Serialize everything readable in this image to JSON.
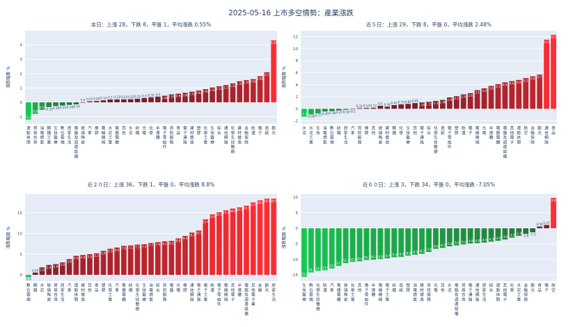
{
  "title": "2025-05-16 上市多空情勢：產業漲跌",
  "chart_data": [
    {
      "type": "bar",
      "title": "本日：上漲 28，下跌 8，平盤 1，平均漲跌 0.55%",
      "ylabel": "漲跌幅度 %",
      "ylim": [
        -1.5,
        5
      ],
      "yticks": [
        -1,
        0,
        1,
        2,
        3,
        4
      ],
      "categories": [
        "運動休閒",
        "貿易百貨",
        "油電燃氣",
        "鋼鐵工業",
        "生技醫療",
        "數位雲端",
        "居家生活",
        "電腦及週邊設備",
        "玻璃陶瓷",
        "汽車",
        "橡膠",
        "電機機械",
        "水泥工業",
        "電器電纜",
        "其他",
        "水泥",
        "紡織",
        "光電",
        "化學工業",
        "半導體",
        "電子零組件",
        "資訊服務",
        "食品",
        "電子通路",
        "建材營造",
        "塑膠",
        "化學生技",
        "其他電子",
        "綜合",
        "通信網路",
        "化學生技醫療",
        "金融保險",
        "航運",
        "電子",
        "造紙",
        "其他電子2",
        "觀光"
      ],
      "display_categories": [
        "運動休閒",
        "貿易百貨",
        "油電燃氣",
        "鋼鐵工業",
        "生技醫療",
        "數位雲端",
        "居家生活",
        "電腦及週邊設備",
        "玻璃陶瓷",
        "汽車",
        "橡膠",
        "電機機械",
        "水泥工業",
        "電器電纜",
        "其他",
        "水泥",
        "紡織",
        "光電",
        "化學",
        "半導體",
        "電子零組件",
        "資訊服務",
        "食品",
        "電子通路",
        "建材營造",
        "塑膠",
        "化學工業",
        "生技醫療",
        "綜合",
        "通信網路",
        "化學生技醫療",
        "建材營造",
        "金融保險",
        "航運",
        "電子",
        "造紙",
        "觀光"
      ],
      "values": [
        -1.2,
        -0.8,
        -0.52,
        -0.33,
        -0.26,
        -0.22,
        -0.18,
        -0.14,
        0.0,
        0.07,
        0.09,
        0.14,
        0.2,
        0.21,
        0.21,
        0.22,
        0.25,
        0.3,
        0.35,
        0.4,
        0.46,
        0.55,
        0.6,
        0.66,
        0.74,
        0.82,
        0.92,
        1.03,
        1.12,
        1.2,
        1.32,
        1.47,
        1.55,
        1.62,
        1.82,
        2.1,
        4.32
      ],
      "labels": [
        "-1.2",
        "-0.8",
        "-0.52",
        "-0.33",
        "-0.26",
        "-0.22",
        "-0.18",
        "-0.14",
        "0.0",
        "0.07",
        "0.09",
        "0.14",
        "0.2",
        "0.21",
        "0.21",
        "0.22",
        "0.25",
        "0.3",
        "0.35",
        "0.4",
        "0.46",
        "0.55",
        "0.6",
        "0.66",
        "0.74",
        "0.82",
        "0.92",
        "1.03",
        "1.12",
        "1.2",
        "1.32",
        "1.47",
        "1.55",
        "1.62",
        "1.82",
        "2.1",
        "4.32"
      ]
    },
    {
      "type": "bar",
      "title": "近５日：上漲 29，下跌 8，平盤 0，平均漲跌 2.48%",
      "ylabel": "漲跌幅度 %",
      "ylim": [
        -2.5,
        13
      ],
      "yticks": [
        -2,
        0,
        2,
        4,
        6,
        8,
        10,
        12
      ],
      "display_categories": [
        "水泥",
        "水泥工業",
        "生技",
        "油電燃氣",
        "數位雲端",
        "紡織",
        "居家生活",
        "汽車",
        "資訊服務",
        "橡膠",
        "其他",
        "玻璃陶瓷",
        "建材營造",
        "鋼鐵",
        "化學",
        "生技醫療",
        "其他",
        "電子通路",
        "綜合",
        "化學生技醫療",
        "造紙",
        "電子零組件",
        "塑膠",
        "航運",
        "電子",
        "電機機械",
        "光電",
        "半導體",
        "電器電纜",
        "電腦及週邊設備",
        "其他電子",
        "運動休閒",
        "航空",
        "金融保險",
        "觀光",
        "通信網路",
        "食品"
      ],
      "values": [
        -1.3,
        -0.95,
        -0.77,
        -0.45,
        -0.38,
        -0.27,
        -0.16,
        -0.1,
        0.11,
        0.14,
        0.17,
        0.5,
        0.36,
        0.62,
        0.75,
        0.82,
        0.95,
        1.05,
        1.15,
        1.3,
        1.48,
        1.9,
        2.1,
        2.4,
        2.6,
        3.1,
        3.4,
        3.8,
        4.1,
        4.4,
        4.6,
        4.8,
        5.1,
        5.4,
        5.7,
        11.5,
        12.3
      ],
      "labels": [
        "-1.3",
        "-0.95",
        "-0.77",
        "-0.45",
        "-0.38",
        "-0.27",
        "-0.16",
        "-0.1",
        "0.11",
        "0.14",
        "0.17",
        "0.5",
        "0.36",
        "0.62",
        "0.75",
        "0.82",
        "0.95",
        "1.05",
        "1.15",
        "1.3",
        "1.48",
        "1.9",
        "2.1",
        "2.4",
        "2.6",
        "3.1",
        "3.4",
        "3.8",
        "4.1",
        "4.4",
        "4.6",
        "4.8",
        "5.1",
        "5.4",
        "5.7",
        "11.5",
        "12.3"
      ]
    },
    {
      "type": "bar",
      "title": "近２０日：上漲 36，下跌 1，平盤 0，平均漲跌 8.8%",
      "ylabel": "漲跌幅度 %",
      "ylim": [
        -1.5,
        19.5
      ],
      "yticks": [
        0,
        5,
        10,
        15
      ],
      "display_categories": [
        "數位雲端",
        "鋼鐵",
        "水泥",
        "玻璃陶瓷",
        "貿易百貨",
        "居家生活",
        "汽車",
        "運動休閒",
        "建材營造",
        "其他",
        "食品",
        "塑膠",
        "化學工業",
        "汽車",
        "電器電纜",
        "紡織",
        "化學生技醫療",
        "生技醫療",
        "油電燃氣",
        "綜合",
        "資訊服務",
        "電腦",
        "光電",
        "橡膠",
        "通信網路",
        "電子通路",
        "電子工業",
        "航運",
        "電子零組件",
        "電機機械",
        "其他電子",
        "半導體",
        "電腦及週邊設備",
        "其他電子業",
        "金融",
        "觀光",
        "居家生活"
      ],
      "values": [
        -0.6,
        0.55,
        1.8,
        2.4,
        2.6,
        3.0,
        3.8,
        4.6,
        4.8,
        5.0,
        5.2,
        5.8,
        6.3,
        6.6,
        7.0,
        7.1,
        7.3,
        7.4,
        7.7,
        7.9,
        8.1,
        8.2,
        8.8,
        9.4,
        10.2,
        10.7,
        13.4,
        14.6,
        15.1,
        15.6,
        16.0,
        16.3,
        16.7,
        17.5,
        18.0,
        18.4,
        18.4
      ],
      "labels": [
        "-0.6",
        "0.55",
        "1.8",
        "2.4",
        "2.6",
        "3.0",
        "3.8",
        "4.6",
        "4.8",
        "5.0",
        "5.2",
        "5.8",
        "6.3",
        "6.6",
        "7.0",
        "7.1",
        "7.3",
        "7.4",
        "7.7",
        "7.9",
        "8.1",
        "8.2",
        "8.8",
        "9.4",
        "10.2",
        "10.7",
        "13.4",
        "14.6",
        "15.1",
        "15.6",
        "16.0",
        "16.3",
        "16.7",
        "17.5",
        "18.0",
        "18.4",
        "18.4"
      ]
    },
    {
      "type": "bar",
      "title": "近６０日：上漲 3，下跌 34，平盤 0，平均漲跌 -7.05%",
      "ylabel": "漲跌幅度 %",
      "ylim": [
        -17,
        11
      ],
      "yticks": [
        -15,
        -10,
        -5,
        0,
        5,
        10
      ],
      "display_categories": [
        "生技醫療",
        "數位雲端",
        "化學生技醫療",
        "航運",
        "汽車",
        "電器電纜",
        "玻璃陶瓷",
        "化學工業",
        "其他",
        "電子零組件",
        "半導體",
        "電機機械",
        "電子工業",
        "紡織",
        "造紙",
        "塑膠",
        "油電燃氣",
        "建材營造",
        "資訊服務",
        "光電",
        "其他",
        "水泥",
        "電腦及週邊設備",
        "貿易百貨",
        "電子通路",
        "通信網路",
        "居家生活",
        "綜合",
        "運動休閒",
        "其他電子",
        "化學",
        "水泥工業",
        "金融保險",
        "觀光",
        "食品",
        "電子",
        "航空"
      ],
      "values": [
        -15.6,
        -14.2,
        -13.7,
        -13.5,
        -12.9,
        -12.1,
        -11.2,
        -10.8,
        -10.6,
        -10.2,
        -10.1,
        -9.9,
        -9.7,
        -9.3,
        -9.2,
        -8.8,
        -8.5,
        -8.2,
        -7.6,
        -6.6,
        -6.3,
        -5.8,
        -5.5,
        -5.2,
        -4.9,
        -4.8,
        -4.6,
        -4.3,
        -4.0,
        -3.6,
        -3.0,
        -2.4,
        -1.8,
        -1.3,
        0.56,
        1.07,
        9.8
      ],
      "labels": [
        "-15.6",
        "-14.2",
        "-13.7",
        "-13.5",
        "-12.9",
        "-12.1",
        "-11.2",
        "-10.8",
        "-10.6",
        "-10.2",
        "-10.1",
        "-9.9",
        "-9.7",
        "-9.3",
        "-9.2",
        "-8.8",
        "-8.5",
        "-8.2",
        "-7.6",
        "-6.6",
        "-6.3",
        "-5.8",
        "-5.5",
        "-5.2",
        "-4.9",
        "-4.8",
        "-4.6",
        "-4.3",
        "-4.0",
        "-3.6",
        "-3.0",
        "-2.4",
        "-1.8",
        "-1.3",
        "0.56",
        "1.07",
        "9.8"
      ]
    }
  ]
}
